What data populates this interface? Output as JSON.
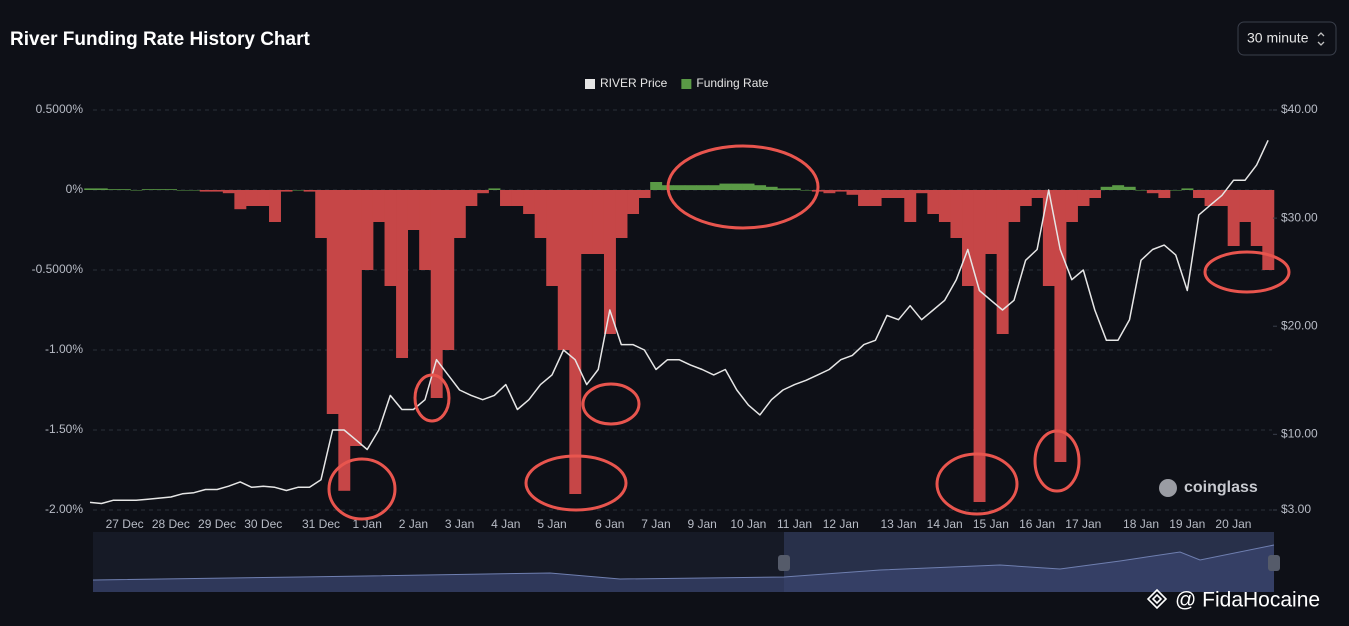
{
  "chart_data": {
    "type": "dual_axis_area_line",
    "title": "River Funding Rate History Chart",
    "interval": "30 minute",
    "watermark": "coinglass",
    "credit": "@ FidaHocaine",
    "categories": [
      null,
      null,
      null,
      "27 Dec",
      null,
      null,
      null,
      "28 Dec",
      null,
      null,
      null,
      "29 Dec",
      null,
      null,
      null,
      "30 Dec",
      null,
      null,
      null,
      null,
      "31 Dec",
      null,
      null,
      null,
      "1 Jan",
      null,
      null,
      null,
      "2 Jan",
      null,
      null,
      null,
      "3 Jan",
      null,
      null,
      null,
      "4 Jan",
      null,
      null,
      null,
      "5 Jan",
      null,
      null,
      null,
      null,
      "6 Jan",
      null,
      null,
      null,
      "7 Jan",
      null,
      null,
      null,
      "9 Jan",
      null,
      null,
      null,
      "10 Jan",
      null,
      null,
      null,
      "11 Jan",
      null,
      null,
      null,
      "12 Jan",
      null,
      null,
      null,
      null,
      "13 Jan",
      null,
      null,
      null,
      "14 Jan",
      null,
      null,
      null,
      "15 Jan",
      null,
      null,
      null,
      "16 Jan",
      null,
      null,
      null,
      "17 Jan",
      null,
      null,
      null,
      null,
      "18 Jan",
      null,
      null,
      null,
      "19 Jan",
      null,
      null,
      null,
      "20 Jan",
      null,
      null,
      null
    ],
    "series": [
      {
        "name": "RIVER Price",
        "color": "#e6e6e6",
        "axis": "y2",
        "values": [
          3.7,
          3.6,
          3.9,
          3.9,
          3.9,
          4.0,
          4.1,
          4.2,
          4.5,
          4.6,
          4.9,
          4.9,
          5.2,
          5.6,
          5.1,
          5.2,
          5.1,
          4.8,
          5.1,
          5.1,
          5.8,
          10.4,
          10.4,
          9.5,
          8.6,
          10.4,
          13.6,
          12.3,
          12.3,
          13.2,
          16.9,
          15.5,
          14.1,
          13.6,
          13.2,
          13.6,
          14.6,
          12.3,
          13.2,
          14.6,
          15.5,
          17.8,
          16.9,
          14.6,
          16.0,
          21.5,
          18.3,
          18.3,
          17.8,
          16.0,
          16.9,
          16.9,
          16.4,
          16.0,
          15.5,
          16.0,
          14.1,
          12.7,
          11.8,
          13.2,
          14.1,
          14.6,
          15.0,
          15.5,
          16.0,
          16.9,
          17.3,
          18.3,
          18.7,
          21.0,
          20.6,
          21.9,
          20.6,
          21.5,
          22.4,
          24.3,
          27.1,
          23.3,
          22.4,
          21.5,
          22.4,
          26.1,
          27.1,
          32.6,
          27.1,
          24.3,
          25.2,
          21.5,
          18.7,
          18.7,
          20.6,
          26.1,
          27.1,
          27.5,
          26.6,
          23.3,
          30.3,
          31.2,
          32.1,
          33.5,
          33.5,
          34.9,
          37.2
        ]
      },
      {
        "name": "Funding Rate",
        "color": "#5a9a46",
        "negative_color": "#c64647",
        "values": [
          0.01,
          0.01,
          0.005,
          0.005,
          0,
          0.005,
          0.005,
          0.005,
          0,
          0,
          -0.01,
          -0.01,
          -0.02,
          -0.12,
          -0.1,
          -0.1,
          -0.2,
          -0.01,
          0,
          -0.01,
          -0.3,
          -1.4,
          -1.88,
          -1.6,
          -0.5,
          -0.2,
          -0.6,
          -1.05,
          -0.25,
          -0.5,
          -1.3,
          -1.0,
          -0.3,
          -0.1,
          -0.02,
          0.01,
          -0.1,
          -0.1,
          -0.15,
          -0.3,
          -0.6,
          -1.0,
          -1.9,
          -0.4,
          -0.4,
          -0.9,
          -0.3,
          -0.15,
          -0.05,
          0.05,
          0.03,
          0.03,
          0.03,
          0.03,
          0.03,
          0.04,
          0.04,
          0.04,
          0.03,
          0.02,
          0.01,
          0.01,
          0,
          -0.01,
          -0.02,
          -0.01,
          -0.03,
          -0.1,
          -0.1,
          -0.05,
          -0.05,
          -0.2,
          -0.02,
          -0.15,
          -0.2,
          -0.3,
          -0.6,
          -1.95,
          -0.4,
          -0.9,
          -0.2,
          -0.1,
          -0.05,
          -0.6,
          -1.7,
          -0.2,
          -0.1,
          -0.05,
          0.02,
          0.03,
          0.02,
          0,
          -0.02,
          -0.05,
          0,
          0.01,
          -0.05,
          -0.1,
          -0.1,
          -0.35,
          -0.2,
          -0.35,
          -0.5
        ]
      }
    ],
    "ylim": [
      -2,
      0.5
    ],
    "yticks": [
      {
        "value": 0.5,
        "label": "0.5000%"
      },
      {
        "value": 0,
        "label": "0%"
      },
      {
        "value": -0.5,
        "label": "-0.5000%"
      },
      {
        "value": -1,
        "label": "-1.00%"
      },
      {
        "value": -1.5,
        "label": "-1.50%"
      },
      {
        "value": -2,
        "label": "-2.00%"
      }
    ],
    "y2lim": [
      3,
      40
    ],
    "y2ticks": [
      {
        "value": 40,
        "label": "$40.00"
      },
      {
        "value": 30,
        "label": "$30.00"
      },
      {
        "value": 20,
        "label": "$20.00"
      },
      {
        "value": 10,
        "label": "$10.00"
      },
      {
        "value": 3,
        "label": "$3.00"
      }
    ],
    "grid": true
  }
}
